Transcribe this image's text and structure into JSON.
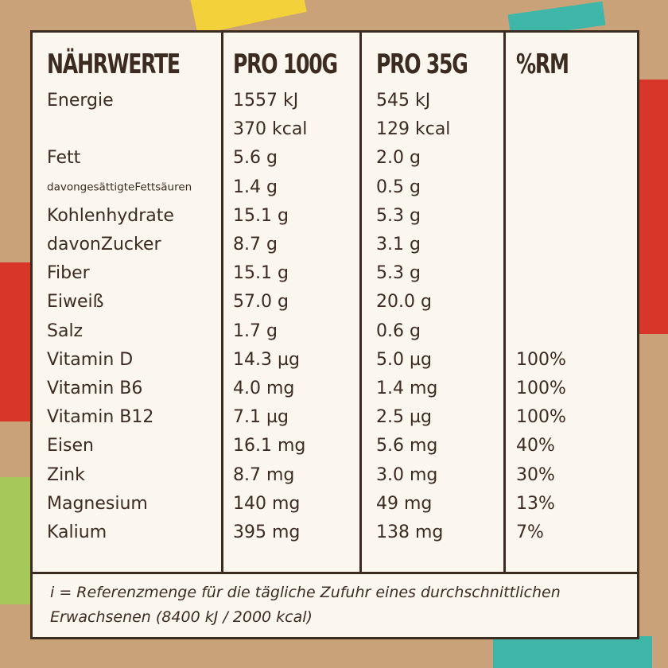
{
  "table": {
    "header": [
      "NÄHRWERTE",
      "PRO 100G",
      "PRO 35G",
      "%RM"
    ],
    "rows": [
      [
        "Energie",
        "1557 kJ",
        "545 kJ",
        null
      ],
      [
        null,
        "370 kcal",
        "129 kcal",
        null
      ],
      [
        "Fett",
        "5.6 g",
        "2.0 g",
        null
      ],
      [
        "davongesättigteFettsäuren",
        "1.4 g",
        "0.5 g",
        null
      ],
      [
        "Kohlenhydrate",
        "15.1 g",
        "5.3 g",
        null
      ],
      [
        "davonZucker",
        "8.7 g",
        "3.1 g",
        null
      ],
      [
        "Fiber",
        "15.1 g",
        "5.3 g",
        null
      ],
      [
        "Eiweiß",
        "57.0 g",
        "20.0 g",
        null
      ],
      [
        "Salz",
        "1.7 g",
        "0.6 g",
        null
      ],
      [
        "Vitamin D",
        "14.3 µg",
        "5.0 µg",
        "100%"
      ],
      [
        "Vitamin B6",
        "4.0 mg",
        "1.4 mg",
        "100%"
      ],
      [
        "Vitamin B12",
        "7.1 µg",
        "2.5 µg",
        "100%"
      ],
      [
        "Eisen",
        "16.1 mg",
        "5.6 mg",
        "40%"
      ],
      [
        "Zink",
        "8.7 mg",
        "3.0 mg",
        "30%"
      ],
      [
        "Magnesium",
        "140 mg",
        "49 mg",
        "13%"
      ],
      [
        "Kalium",
        "395 mg",
        "138 mg",
        "7%"
      ]
    ]
  },
  "footnote": {
    "lines": [
      "i = Referenzmenge für die tägliche Zufuhr eines durchschnittlichen",
      "Erwachsenen (8400 kJ / 2000 kcal)"
    ]
  }
}
